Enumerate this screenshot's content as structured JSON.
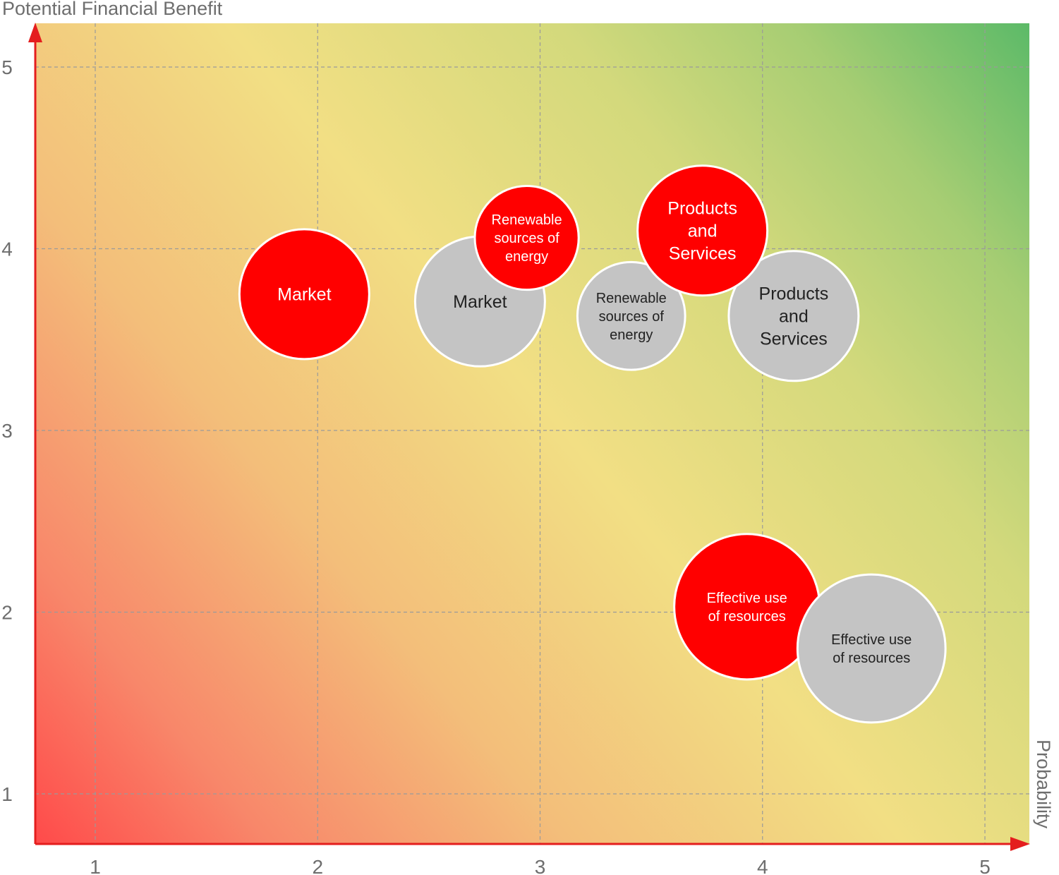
{
  "chart_data": {
    "type": "bubble",
    "xlabel": "Probability",
    "ylabel": "Potential Financial Benefit",
    "xlim": [
      0.75,
      5.2
    ],
    "ylim": [
      0.75,
      5.25
    ],
    "xticks": [
      1,
      2,
      3,
      4,
      5
    ],
    "yticks": [
      1,
      2,
      3,
      4,
      5
    ],
    "grid": true,
    "background": "red-to-green diagonal gradient (low = red, high = green)",
    "colors": {
      "red_series": "#ff0000",
      "gray_series": "#c4c4c4",
      "axis": "#e41e1e",
      "grid": "#9a9a9a",
      "gradient_low": "#ff4a4a",
      "gradient_mid": "#f2df84",
      "gradient_high": "#5cba68"
    },
    "series": [
      {
        "color": "#ff0000",
        "points": [
          {
            "label": "Market",
            "lines": [
              "Market"
            ],
            "x": 1.94,
            "y": 3.75,
            "size": 1.0
          },
          {
            "label": "Renewable sources of energy",
            "lines": [
              "Renewable",
              "sources of",
              "energy"
            ],
            "x": 2.94,
            "y": 4.06,
            "size": 0.8
          },
          {
            "label": "Products and Services",
            "lines": [
              "Products",
              "and",
              "Services"
            ],
            "x": 3.73,
            "y": 4.1,
            "size": 1.0
          },
          {
            "label": "Effective use of resources",
            "lines": [
              "Effective use",
              "of resources"
            ],
            "x": 3.93,
            "y": 2.03,
            "size": 1.12
          }
        ]
      },
      {
        "color": "#c4c4c4",
        "points": [
          {
            "label": "Market",
            "lines": [
              "Market"
            ],
            "x": 2.73,
            "y": 3.71,
            "size": 1.0
          },
          {
            "label": "Renewable sources of energy",
            "lines": [
              "Renewable",
              "sources of",
              "energy"
            ],
            "x": 3.41,
            "y": 3.63,
            "size": 0.83
          },
          {
            "label": "Products and Services",
            "lines": [
              "Products",
              "and",
              "Services"
            ],
            "x": 4.14,
            "y": 3.63,
            "size": 1.0
          },
          {
            "label": "Effective use of resources",
            "lines": [
              "Effective use",
              "of resources"
            ],
            "x": 4.49,
            "y": 1.8,
            "size": 1.14
          }
        ]
      }
    ]
  }
}
